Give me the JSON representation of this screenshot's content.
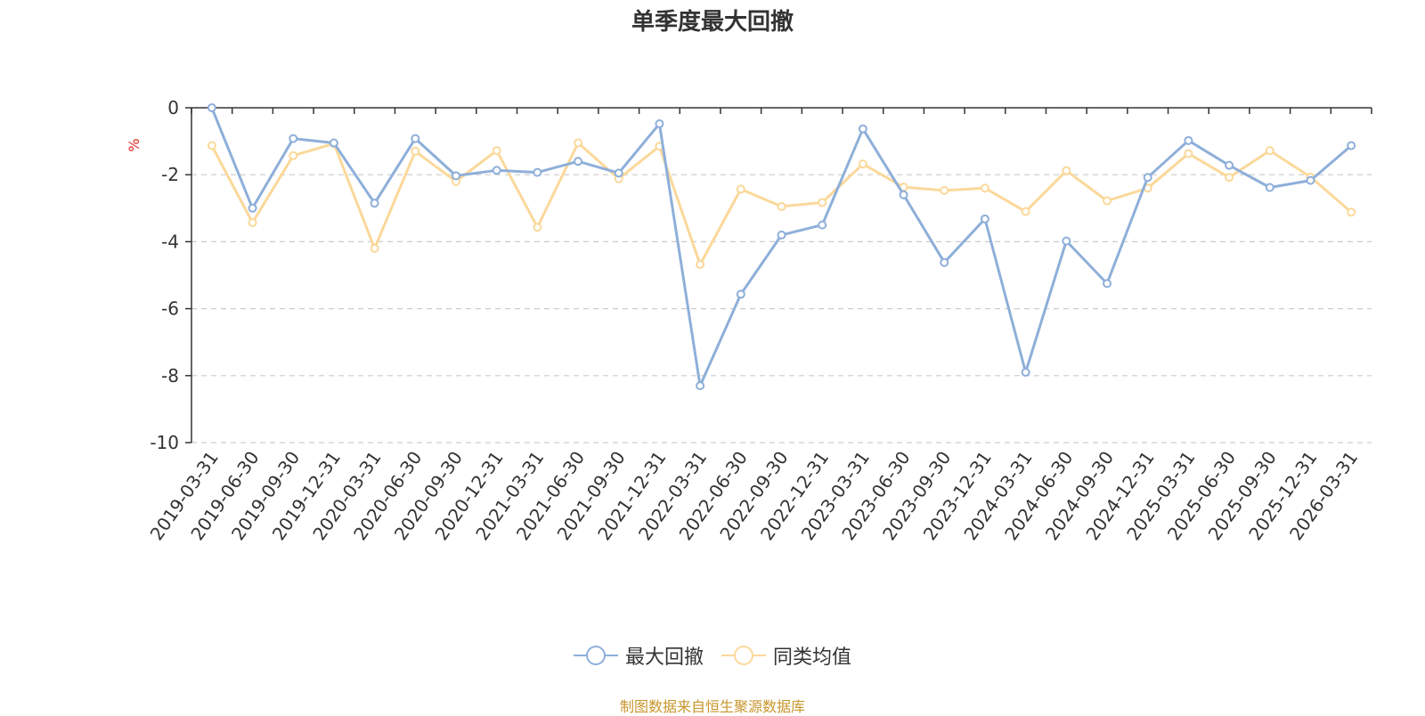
{
  "chart_data": {
    "type": "line",
    "title": "单季度最大回撤",
    "ylabel": "%",
    "ylim": [
      -10,
      0
    ],
    "yticks": [
      0,
      -2,
      -4,
      -6,
      -8,
      -10
    ],
    "grid": true,
    "legend_position": "bottom",
    "categories": [
      "2019-03-31",
      "2019-06-30",
      "2019-09-30",
      "2019-12-31",
      "2020-03-31",
      "2020-06-30",
      "2020-09-30",
      "2020-12-31",
      "2021-03-31",
      "2021-06-30",
      "2021-09-30",
      "2021-12-31",
      "2022-03-31",
      "2022-06-30",
      "2022-09-30",
      "2022-12-31",
      "2023-03-31",
      "2023-06-30",
      "2023-09-30",
      "2023-12-31",
      "2024-03-31",
      "2024-06-30",
      "2024-09-30",
      "2024-12-31",
      "2025-03-31",
      "2025-06-30",
      "2025-09-30",
      "2025-12-31",
      "2026-03-31"
    ],
    "series": [
      {
        "name": "最大回撤",
        "color": "#8eafd9",
        "values": [
          0.0,
          -3.0,
          -0.92,
          -1.05,
          -2.85,
          -0.92,
          -2.03,
          -1.87,
          -1.93,
          -1.6,
          -1.95,
          -0.48,
          -8.3,
          -5.57,
          -3.8,
          -3.5,
          -0.63,
          -2.6,
          -4.62,
          -3.32,
          -7.9,
          -3.98,
          -5.25,
          -2.08,
          -0.98,
          -1.72,
          -2.38,
          -2.17,
          -1.13
        ]
      },
      {
        "name": "同类均值",
        "color": "#fbd89a",
        "values": [
          -1.13,
          -3.43,
          -1.43,
          -1.07,
          -4.2,
          -1.3,
          -2.2,
          -1.28,
          -3.57,
          -1.05,
          -2.12,
          -1.15,
          -4.68,
          -2.43,
          -2.95,
          -2.83,
          -1.68,
          -2.37,
          -2.47,
          -2.4,
          -3.1,
          -1.88,
          -2.78,
          -2.4,
          -1.37,
          -2.08,
          -1.28,
          -2.07,
          -3.12
        ]
      }
    ]
  },
  "footer": {
    "source": "制图数据来自恒生聚源数据库",
    "source_color": "#c8962c"
  },
  "colors": {
    "axis": "#333333",
    "grid": "#cccccc",
    "ylabel": "#e0281f"
  }
}
